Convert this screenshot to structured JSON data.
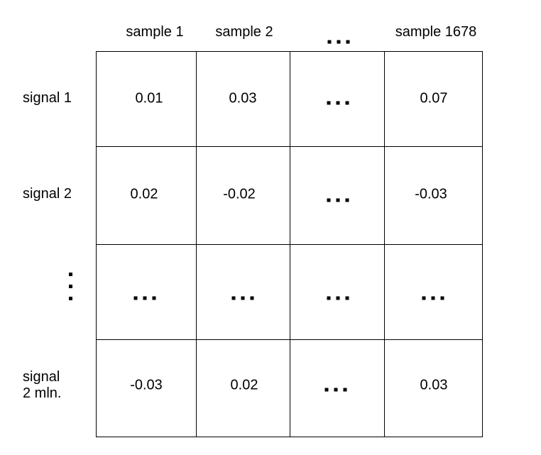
{
  "columns": [
    "sample 1",
    "sample 2",
    "...",
    "sample 1678"
  ],
  "rows": [
    {
      "label": "signal 1",
      "cells": [
        "0.01",
        "0.03",
        "...",
        "0.07"
      ]
    },
    {
      "label": "signal 2",
      "cells": [
        "0.02",
        "-0.02",
        "...",
        "-0.03"
      ]
    },
    {
      "label": "...",
      "cells": [
        "...",
        "...",
        "...",
        "..."
      ]
    },
    {
      "label": "signal\n2 mln.",
      "cells": [
        "-0.03",
        "0.02",
        "...",
        "0.03"
      ]
    }
  ],
  "ellipsis_symbol": "..."
}
